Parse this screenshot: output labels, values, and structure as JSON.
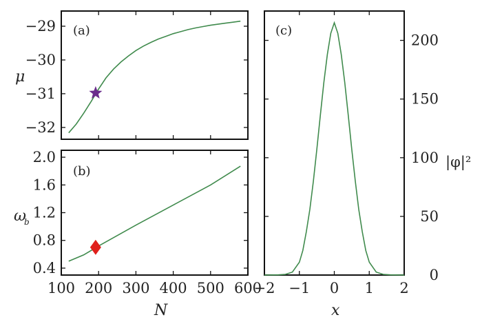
{
  "colors": {
    "curve": "#3f8a4c",
    "star": "#6b2d8c",
    "diamond": "#e0201c",
    "frame": "#111111"
  },
  "chart_data": [
    {
      "panel": "(a)",
      "type": "line",
      "ylabel": "μ",
      "xlim": [
        100,
        600
      ],
      "ylim": [
        -32.35,
        -28.55
      ],
      "xticks": [
        100,
        200,
        300,
        400,
        500,
        600
      ],
      "yticks": [
        -32,
        -31,
        -30,
        -29
      ],
      "ytick_labels": [
        "−32",
        "−31",
        "−30",
        "−29"
      ],
      "grid": false,
      "series": [
        {
          "x": [
            120,
            140,
            160,
            180,
            200,
            220,
            240,
            260,
            280,
            300,
            320,
            340,
            360,
            380,
            400,
            420,
            440,
            460,
            480,
            500,
            520,
            540,
            560,
            580
          ],
          "y": [
            -32.16,
            -31.9,
            -31.58,
            -31.23,
            -30.86,
            -30.53,
            -30.27,
            -30.06,
            -29.88,
            -29.72,
            -29.59,
            -29.48,
            -29.38,
            -29.3,
            -29.22,
            -29.16,
            -29.1,
            -29.05,
            -29.01,
            -28.97,
            -28.94,
            -28.91,
            -28.88,
            -28.85
          ]
        }
      ],
      "marker": {
        "shape": "star",
        "x": 192,
        "y": -30.98
      }
    },
    {
      "panel": "(b)",
      "type": "line",
      "ylabel": "ω",
      "ylabel_sub": "b",
      "xlabel": "N",
      "xlim": [
        100,
        600
      ],
      "ylim": [
        0.3,
        2.1
      ],
      "xticks": [
        100,
        200,
        300,
        400,
        500,
        600
      ],
      "xtick_labels": [
        "100",
        "200",
        "300",
        "400",
        "500",
        "600"
      ],
      "yticks": [
        0.4,
        0.8,
        1.2,
        1.6,
        2.0
      ],
      "ytick_labels": [
        "0.4",
        "0.8",
        "1.2",
        "1.6",
        "2.0"
      ],
      "grid": false,
      "series": [
        {
          "x": [
            120,
            160,
            200,
            300,
            400,
            500,
            580
          ],
          "y": [
            0.5,
            0.59,
            0.72,
            1.02,
            1.31,
            1.6,
            1.87
          ]
        }
      ],
      "marker": {
        "shape": "diamond",
        "x": 192,
        "y": 0.7
      }
    },
    {
      "panel": "(c)",
      "type": "line",
      "ylabel": "|φ|²",
      "xlabel": "x",
      "xlim": [
        -2,
        2
      ],
      "ylim": [
        0,
        225
      ],
      "xticks": [
        -2,
        -1,
        0,
        1,
        2
      ],
      "xtick_labels": [
        "−2",
        "−1",
        "0",
        "1",
        "2"
      ],
      "yticks": [
        0,
        50,
        100,
        150,
        200
      ],
      "ytick_labels": [
        "0",
        "50",
        "100",
        "150",
        "200"
      ],
      "yaxis_side": "right",
      "grid": false,
      "series": [
        {
          "x": [
            -2.0,
            -1.6,
            -1.4,
            -1.2,
            -1.0,
            -0.9,
            -0.8,
            -0.7,
            -0.6,
            -0.5,
            -0.4,
            -0.3,
            -0.2,
            -0.1,
            0.0,
            0.1,
            0.2,
            0.3,
            0.4,
            0.5,
            0.6,
            0.7,
            0.8,
            0.9,
            1.0,
            1.2,
            1.4,
            1.6,
            2.0
          ],
          "y": [
            0,
            0.2,
            0.6,
            2.5,
            11,
            21,
            37,
            56,
            80,
            107,
            136,
            164,
            188,
            206,
            215,
            206,
            188,
            164,
            136,
            107,
            80,
            56,
            37,
            21,
            11,
            2.5,
            0.6,
            0.2,
            0
          ]
        }
      ]
    }
  ]
}
